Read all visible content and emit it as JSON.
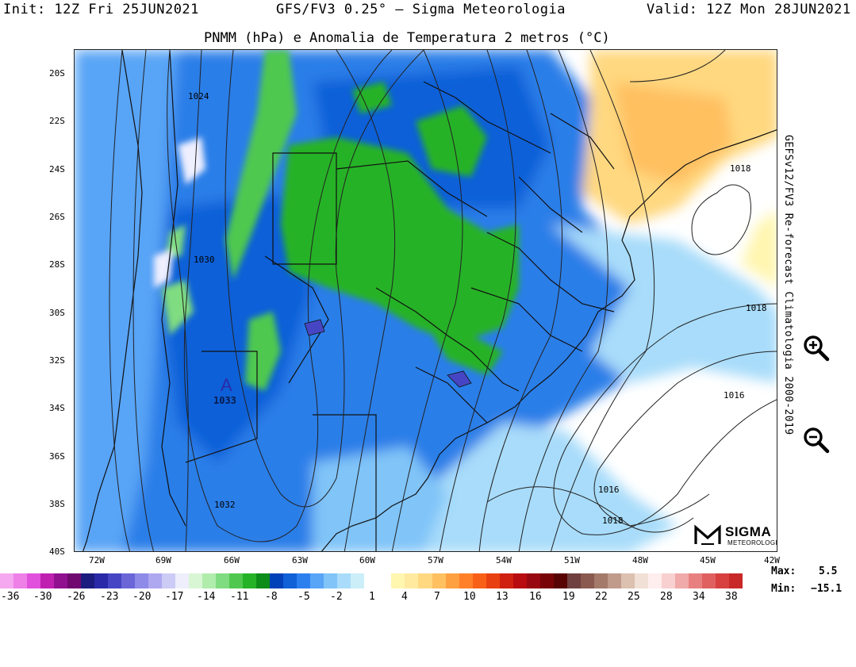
{
  "header": {
    "init": "Init: 12Z Fri 25JUN2021",
    "model": "GFS/FV3 0.25° — Sigma Meteorologia",
    "valid": "Valid: 12Z Mon 28JUN2021"
  },
  "subtitle": "PNMM (hPa) e Anomalia de Temperatura 2 metros (°C)",
  "side_label": "GEFSv12/FV3 Re-forecast Climatologia 2000-2019",
  "map": {
    "latitude_labels": [
      "20S",
      "22S",
      "24S",
      "26S",
      "28S",
      "30S",
      "32S",
      "34S",
      "36S",
      "38S",
      "40S"
    ],
    "longitude_labels": [
      "72W",
      "69W",
      "66W",
      "63W",
      "60W",
      "57W",
      "54W",
      "51W",
      "48W",
      "45W",
      "42W"
    ],
    "isobar_labels": [
      "1024",
      "1030",
      "1018",
      "1018",
      "1016",
      "1016",
      "1018",
      "1032"
    ],
    "high_pressure": {
      "symbol": "A",
      "value": "1033"
    }
  },
  "colorbar": {
    "labels": [
      "-36",
      "-30",
      "-26",
      "-23",
      "-20",
      "-17",
      "-14",
      "-11",
      "-8",
      "-5",
      "-2",
      "1",
      "4",
      "7",
      "10",
      "13",
      "16",
      "19",
      "22",
      "25",
      "28",
      "34",
      "38"
    ],
    "colors": [
      "#f5a8f0",
      "#ee80e8",
      "#e050dc",
      "#c020b0",
      "#901090",
      "#700870",
      "#1c1c80",
      "#2a2aa8",
      "#4646c4",
      "#6a66d8",
      "#8e8ae8",
      "#aea8f0",
      "#cccbf6",
      "#eeeefc",
      "#d8f6d4",
      "#b0ecac",
      "#80dc80",
      "#50c850",
      "#26b226",
      "#0c8c18",
      "#0040b8",
      "#1060d8",
      "#2c80ee",
      "#58a4f6",
      "#80c4f8",
      "#a8dcfa",
      "#cceef8",
      "#ffffff",
      "#ffffff",
      "#fff6b0",
      "#ffeaa0",
      "#ffd880",
      "#ffc060",
      "#ffa040",
      "#ff8028",
      "#f86018",
      "#e84010",
      "#d02010",
      "#b80c10",
      "#980810",
      "#780408",
      "#580404",
      "#704040",
      "#8a5a50",
      "#a47a6a",
      "#c09a8a",
      "#dcc0b0",
      "#f0e0d6",
      "#ffeeee",
      "#f8d0d0",
      "#f0aaaa",
      "#e88080",
      "#e06060",
      "#d84040",
      "#c82828"
    ]
  },
  "stats": {
    "max_label": "Max:",
    "max_value": "5.5",
    "min_label": "Min:",
    "min_value": "−15.1"
  },
  "logo": {
    "name": "SIGMA",
    "sub": "METEOROLOGIA"
  },
  "zoom": {
    "in_icon": "zoom-in-icon",
    "out_icon": "zoom-out-icon"
  }
}
